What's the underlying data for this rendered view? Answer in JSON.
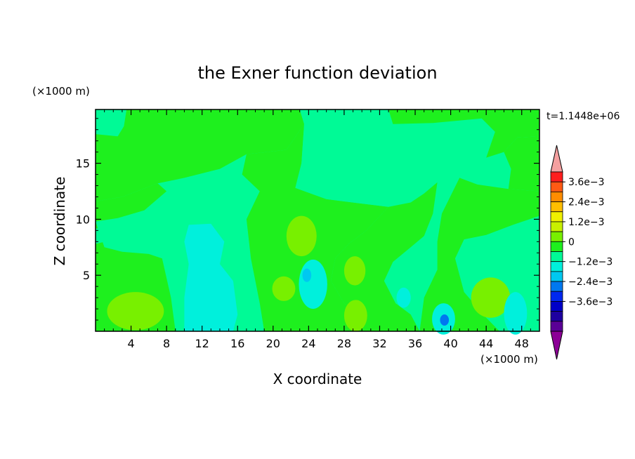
{
  "chart_data": {
    "type": "heatmap",
    "title": "the Exner function deviation",
    "xlabel": "X coordinate",
    "ylabel": "Z coordinate",
    "x_unit": "(×1000 m)",
    "y_unit": "(×1000 m)",
    "time_label": "t=1.1448e+06",
    "xlim": [
      0,
      50
    ],
    "ylim": [
      0,
      19.8
    ],
    "x_ticks": [
      "4",
      "8",
      "12",
      "16",
      "20",
      "24",
      "28",
      "32",
      "36",
      "40",
      "44",
      "48"
    ],
    "y_ticks": [
      "5",
      "10",
      "15"
    ],
    "colorbar": {
      "levels": [
        -0.0042,
        -0.0036,
        -0.003,
        -0.0024,
        -0.0018,
        -0.0012,
        -0.0006,
        0,
        0.0006,
        0.0012,
        0.0018,
        0.0024,
        0.003,
        0.0036,
        0.0042
      ],
      "labels": [
        "3.6e−3",
        "2.4e−3",
        "1.2e−3",
        "0",
        "−1.2e−3",
        "−2.4e−3",
        "−3.6e−3"
      ],
      "colors_top_to_bottom": [
        "#ff1e1e",
        "#ff5a14",
        "#ff8c00",
        "#ffbe00",
        "#f0f000",
        "#c8f000",
        "#78f000",
        "#1ef01e",
        "#00fa96",
        "#00f0dc",
        "#00c8f0",
        "#0078f0",
        "#0028f0",
        "#0000c8",
        "#1e00a0",
        "#5a0096"
      ],
      "over_color": "#f4a0a0",
      "under_color": "#8c0096"
    },
    "field_colors": {
      "level_-0.0012": "#00f0dc",
      "level_-0.0006": "#00fa96",
      "level_0": "#1ef01e",
      "level_0.0006": "#78f000",
      "level_-0.0018": "#00c8f0",
      "level_-0.0024": "#0078f0",
      "level_-0.003": "#0028f0"
    }
  }
}
